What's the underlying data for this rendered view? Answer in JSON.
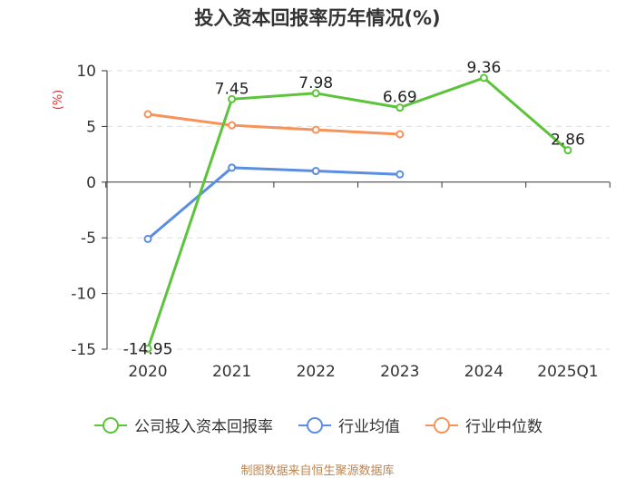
{
  "title": "投入资本回报率历年情况(%)",
  "source": "制图数据来自恒生聚源数据库",
  "chart_data": {
    "type": "line",
    "title": "投入资本回报率历年情况(%)",
    "ylabel": "(%)",
    "xlabel": "",
    "ylim": [
      -15,
      10
    ],
    "yticks": [
      10,
      5,
      0,
      -5,
      -10,
      -15
    ],
    "categories": [
      "2020",
      "2021",
      "2022",
      "2023",
      "2024",
      "2025Q1"
    ],
    "grid": true,
    "legend_position": "bottom",
    "series": [
      {
        "name": "公司投入资本回报率",
        "color": "#5cc43a",
        "values": [
          -14.95,
          7.45,
          7.98,
          6.69,
          9.36,
          2.86
        ],
        "labels": [
          "-14.95",
          "7.45",
          "7.98",
          "6.69",
          "9.36",
          "2.86"
        ]
      },
      {
        "name": "行业均值",
        "color": "#5b8de3",
        "values": [
          -5.1,
          1.3,
          1.0,
          0.7,
          null,
          null
        ]
      },
      {
        "name": "行业中位数",
        "color": "#f5935b",
        "values": [
          6.1,
          5.1,
          4.7,
          4.3,
          null,
          null
        ]
      }
    ]
  }
}
